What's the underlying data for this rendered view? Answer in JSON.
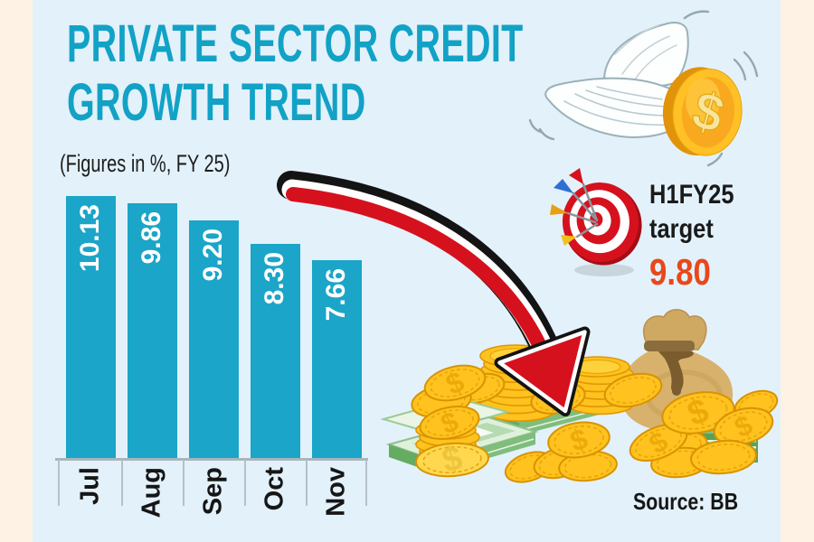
{
  "title": {
    "line1": "PRIVATE SECTOR CREDIT",
    "line2": "GROWTH TREND"
  },
  "subtitle": "(Figures in %, FY 25)",
  "chart_data": {
    "type": "bar",
    "title": "Private sector credit growth trend",
    "categories": [
      "Jul",
      "Aug",
      "Sep",
      "Oct",
      "Nov"
    ],
    "values": [
      10.13,
      9.86,
      9.2,
      8.3,
      7.66
    ],
    "value_labels": [
      "10.13",
      "9.86",
      "9.20",
      "8.30",
      "7.66"
    ],
    "unit": "%",
    "xlabel": "",
    "ylabel": "",
    "ylim": [
      0,
      10.5
    ],
    "grid": false,
    "legend": false,
    "bar_color": "#1ba5c8",
    "value_label_color": "#ffffff",
    "category_label_color": "#161616"
  },
  "annotation": {
    "h1fy25_line1": "H1FY25",
    "h1fy25_line2": "target",
    "h1fy25_value": "9.80",
    "value_color": "#e8481b"
  },
  "source": "Source: BB",
  "icons": {
    "winged_coin": "winged-coin-icon",
    "dart_target": "dart-target-icon",
    "trend_arrow": "down-trend-arrow-icon",
    "money_bag": "money-bag-icon",
    "money_pile": "money-pile-icon"
  },
  "colors": {
    "background_margin": "#fdf2e3",
    "background_panel": "#e3f1fa",
    "title": "#12a2c6",
    "bar": "#1ba5c8",
    "target_value": "#e8481b",
    "arrow_red": "#d6111e",
    "arrow_black": "#141414",
    "coin_gold": "#ffc21e",
    "note_green": "#6fb06d",
    "bag_tan": "#d8b26c"
  }
}
